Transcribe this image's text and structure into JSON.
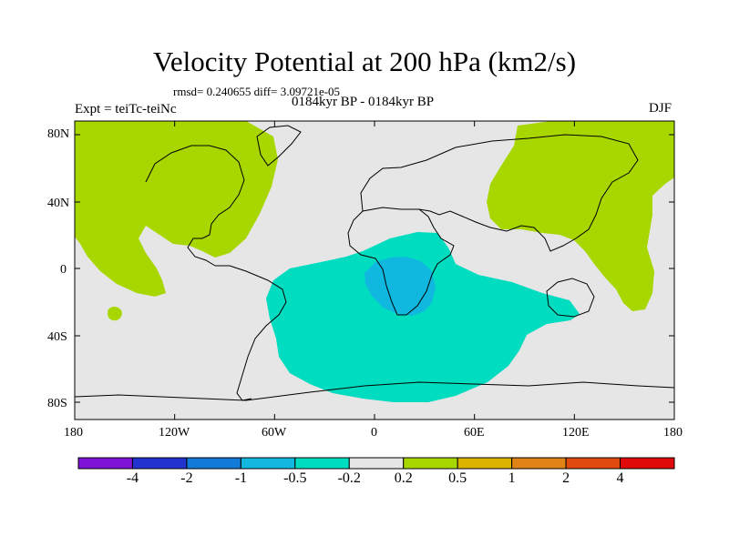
{
  "title": "Velocity Potential at 200 hPa (km2/s)",
  "stats": "rmsd= 0.240655 diff= 3.09721e-05",
  "left_label": "Expt = teiTc-teiNc",
  "center_label": "0184kyr BP - 0184kyr BP",
  "right_label": "DJF",
  "map": {
    "lat_ticks": [
      "80N",
      "40N",
      "0",
      "40S",
      "80S"
    ],
    "lon_ticks": [
      "180",
      "120W",
      "60W",
      "0",
      "60E",
      "120E",
      "180"
    ],
    "colors": {
      "background_field": "#e6e6e6",
      "positive_0_2_to_0_5": "#a8d700",
      "negative_0_2_to_0_5": "#00dcc0",
      "negative_0_5_to_1": "#10b8e0"
    }
  },
  "colorbar": {
    "labels": [
      "-4",
      "-2",
      "-1",
      "-0.5",
      "-0.2",
      "0.2",
      "0.5",
      "1",
      "2",
      "4"
    ],
    "colors": [
      "#7f14d7",
      "#2233d0",
      "#127ad8",
      "#12b8e0",
      "#00dcc0",
      "#e6e6e6",
      "#a8d700",
      "#dcb400",
      "#e08416",
      "#e04a0e",
      "#e00a0a"
    ]
  }
}
